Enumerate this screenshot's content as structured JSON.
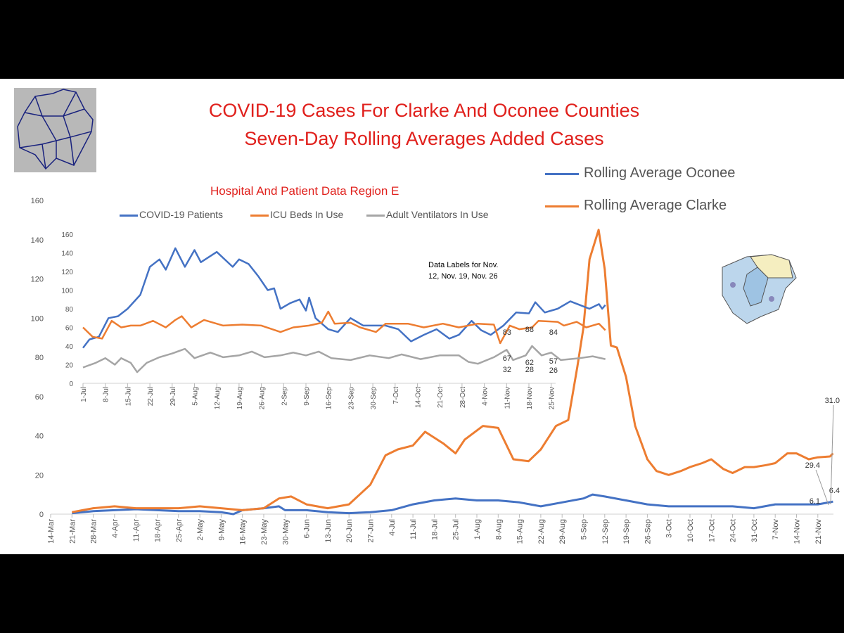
{
  "title_line1": "COVID-19 Cases For Clarke And Oconee Counties",
  "title_line2": "Seven-Day Rolling Averages Added Cases",
  "colors": {
    "oconee": "#4472c4",
    "clarke": "#ed7d31",
    "vent": "#a5a5a5",
    "title": "#e0201c"
  },
  "chart_data": [
    {
      "type": "line",
      "title": "Seven-Day Rolling Averages Added Cases",
      "ylim": [
        0,
        160
      ],
      "yticks": [
        "0",
        "20",
        "40",
        "60",
        "80",
        "100",
        "120",
        "140",
        "160"
      ],
      "xticks": [
        "14-Mar",
        "21-Mar",
        "28-Mar",
        "4-Apr",
        "11-Apr",
        "18-Apr",
        "25-Apr",
        "2-May",
        "9-May",
        "16-May",
        "23-May",
        "30-May",
        "6-Jun",
        "13-Jun",
        "20-Jun",
        "27-Jun",
        "4-Jul",
        "11-Jul",
        "18-Jul",
        "25-Jul",
        "1-Aug",
        "8-Aug",
        "15-Aug",
        "22-Aug",
        "29-Aug",
        "5-Sep",
        "12-Sep",
        "19-Sep",
        "26-Sep",
        "3-Oct",
        "10-Oct",
        "17-Oct",
        "24-Oct",
        "31-Oct",
        "7-Nov",
        "14-Nov",
        "21-Nov"
      ],
      "x_unit": "days since 14-Mar",
      "series": [
        {
          "name": "Rolling Average Oconee",
          "points": [
            [
              7,
              0.5
            ],
            [
              14,
              1.5
            ],
            [
              21,
              2
            ],
            [
              28,
              2.5
            ],
            [
              35,
              2
            ],
            [
              42,
              1.5
            ],
            [
              49,
              1.5
            ],
            [
              56,
              1
            ],
            [
              60,
              0
            ],
            [
              63,
              2
            ],
            [
              70,
              3
            ],
            [
              75,
              4
            ],
            [
              77,
              2
            ],
            [
              84,
              2
            ],
            [
              91,
              1
            ],
            [
              98,
              0.5
            ],
            [
              105,
              1
            ],
            [
              112,
              2
            ],
            [
              119,
              5
            ],
            [
              126,
              7
            ],
            [
              133,
              8
            ],
            [
              140,
              7
            ],
            [
              147,
              7
            ],
            [
              154,
              6
            ],
            [
              161,
              4
            ],
            [
              168,
              6
            ],
            [
              175,
              8
            ],
            [
              178,
              10
            ],
            [
              182,
              9
            ],
            [
              189,
              7
            ],
            [
              196,
              5
            ],
            [
              203,
              4
            ],
            [
              210,
              4
            ],
            [
              217,
              4
            ],
            [
              224,
              4
            ],
            [
              231,
              3
            ],
            [
              238,
              5
            ],
            [
              245,
              5
            ],
            [
              252,
              5
            ],
            [
              256,
              6.1
            ],
            [
              257,
              6.4
            ]
          ],
          "end_labels": [
            "6.1",
            "6.4"
          ]
        },
        {
          "name": "Rolling Average Clarke",
          "points": [
            [
              7,
              1
            ],
            [
              14,
              3
            ],
            [
              21,
              4
            ],
            [
              28,
              3
            ],
            [
              35,
              3
            ],
            [
              42,
              3
            ],
            [
              49,
              4
            ],
            [
              56,
              3
            ],
            [
              63,
              2
            ],
            [
              70,
              3
            ],
            [
              75,
              8
            ],
            [
              79,
              9
            ],
            [
              84,
              5
            ],
            [
              91,
              3
            ],
            [
              98,
              5
            ],
            [
              105,
              15
            ],
            [
              110,
              30
            ],
            [
              114,
              33
            ],
            [
              119,
              35
            ],
            [
              123,
              42
            ],
            [
              129,
              36
            ],
            [
              133,
              31
            ],
            [
              136,
              38
            ],
            [
              142,
              45
            ],
            [
              147,
              44
            ],
            [
              152,
              28
            ],
            [
              157,
              27
            ],
            [
              161,
              33
            ],
            [
              166,
              45
            ],
            [
              170,
              48
            ],
            [
              173,
              75
            ],
            [
              175,
              95
            ],
            [
              177,
              130
            ],
            [
              180,
              145
            ],
            [
              182,
              125
            ],
            [
              184,
              86
            ],
            [
              186,
              85
            ],
            [
              189,
              70
            ],
            [
              192,
              45
            ],
            [
              196,
              28
            ],
            [
              199,
              22
            ],
            [
              203,
              20
            ],
            [
              207,
              22
            ],
            [
              210,
              24
            ],
            [
              214,
              26
            ],
            [
              217,
              28
            ],
            [
              221,
              23
            ],
            [
              224,
              21
            ],
            [
              228,
              24
            ],
            [
              231,
              24
            ],
            [
              235,
              25
            ],
            [
              238,
              26
            ],
            [
              242,
              31
            ],
            [
              245,
              31
            ],
            [
              249,
              28
            ],
            [
              252,
              29
            ],
            [
              256,
              29.4
            ],
            [
              257,
              31.0
            ]
          ],
          "end_labels": [
            "29.4",
            "31.0"
          ]
        }
      ],
      "legend": "top-right"
    },
    {
      "type": "line",
      "title": "Hospital And Patient Data Region E",
      "ylim": [
        0,
        160
      ],
      "yticks": [
        "0",
        "20",
        "40",
        "60",
        "80",
        "100",
        "120",
        "140",
        "160"
      ],
      "xticks": [
        "1-Jul",
        "8-Jul",
        "15-Jul",
        "22-Jul",
        "29-Jul",
        "5-Aug",
        "12-Aug",
        "19-Aug",
        "26-Aug",
        "2-Sep",
        "9-Sep",
        "16-Sep",
        "23-Sep",
        "30-Sep",
        "7-Oct",
        "14-Oct",
        "21-Oct",
        "28-Oct",
        "4-Nov",
        "11-Nov",
        "18-Nov",
        "25-Nov"
      ],
      "x_unit": "days since 1-Jul",
      "annotation": "Data Labels for Nov. 12, Nov. 19, Nov. 26",
      "series": [
        {
          "name": "COVID-19 Patients",
          "points": [
            [
              0,
              38
            ],
            [
              2,
              47
            ],
            [
              5,
              50
            ],
            [
              8,
              70
            ],
            [
              11,
              72
            ],
            [
              14,
              80
            ],
            [
              18,
              95
            ],
            [
              21,
              125
            ],
            [
              24,
              133
            ],
            [
              26,
              122
            ],
            [
              29,
              145
            ],
            [
              32,
              125
            ],
            [
              35,
              143
            ],
            [
              37,
              130
            ],
            [
              42,
              141
            ],
            [
              47,
              125
            ],
            [
              49,
              133
            ],
            [
              52,
              128
            ],
            [
              55,
              115
            ],
            [
              58,
              100
            ],
            [
              60,
              102
            ],
            [
              62,
              80
            ],
            [
              65,
              86
            ],
            [
              68,
              90
            ],
            [
              70,
              78
            ],
            [
              71,
              92
            ],
            [
              73,
              70
            ],
            [
              77,
              58
            ],
            [
              80,
              55
            ],
            [
              84,
              70
            ],
            [
              88,
              62
            ],
            [
              95,
              62
            ],
            [
              99,
              58
            ],
            [
              103,
              45
            ],
            [
              107,
              52
            ],
            [
              111,
              58
            ],
            [
              115,
              48
            ],
            [
              118,
              52
            ],
            [
              122,
              67
            ],
            [
              125,
              57
            ],
            [
              128,
              52
            ],
            [
              132,
              62
            ],
            [
              136,
              76
            ],
            [
              140,
              75
            ],
            [
              142,
              87
            ],
            [
              145,
              76
            ],
            [
              149,
              80
            ],
            [
              153,
              88
            ],
            [
              156,
              84
            ],
            [
              159,
              80
            ],
            [
              162,
              85
            ],
            [
              163,
              80
            ],
            [
              164,
              84
            ]
          ],
          "labels": [
            "83",
            "88",
            "84"
          ]
        },
        {
          "name": "ICU Beds In Use",
          "points": [
            [
              0,
              60
            ],
            [
              3,
              50
            ],
            [
              6,
              48
            ],
            [
              9,
              67
            ],
            [
              12,
              60
            ],
            [
              15,
              62
            ],
            [
              18,
              62
            ],
            [
              22,
              67
            ],
            [
              26,
              60
            ],
            [
              29,
              68
            ],
            [
              31,
              72
            ],
            [
              34,
              60
            ],
            [
              38,
              68
            ],
            [
              44,
              62
            ],
            [
              50,
              63
            ],
            [
              56,
              62
            ],
            [
              62,
              55
            ],
            [
              66,
              60
            ],
            [
              71,
              62
            ],
            [
              75,
              65
            ],
            [
              77,
              77
            ],
            [
              79,
              64
            ],
            [
              84,
              65
            ],
            [
              87,
              60
            ],
            [
              92,
              55
            ],
            [
              95,
              64
            ],
            [
              102,
              64
            ],
            [
              107,
              60
            ],
            [
              113,
              64
            ],
            [
              118,
              60
            ],
            [
              124,
              64
            ],
            [
              129,
              63
            ],
            [
              131,
              43
            ],
            [
              134,
              62
            ],
            [
              137,
              58
            ],
            [
              141,
              60
            ],
            [
              143,
              67
            ],
            [
              149,
              66
            ],
            [
              151,
              62
            ],
            [
              155,
              66
            ],
            [
              158,
              60
            ],
            [
              162,
              64
            ],
            [
              164,
              57
            ]
          ],
          "labels": [
            "67",
            "62",
            "57"
          ]
        },
        {
          "name": "Adult Ventilators In Use",
          "points": [
            [
              0,
              17
            ],
            [
              4,
              22
            ],
            [
              7,
              27
            ],
            [
              10,
              20
            ],
            [
              12,
              27
            ],
            [
              15,
              22
            ],
            [
              17,
              12
            ],
            [
              20,
              22
            ],
            [
              24,
              28
            ],
            [
              28,
              32
            ],
            [
              32,
              37
            ],
            [
              35,
              27
            ],
            [
              40,
              33
            ],
            [
              44,
              28
            ],
            [
              49,
              30
            ],
            [
              53,
              34
            ],
            [
              57,
              28
            ],
            [
              62,
              30
            ],
            [
              66,
              33
            ],
            [
              70,
              30
            ],
            [
              74,
              34
            ],
            [
              78,
              27
            ],
            [
              84,
              25
            ],
            [
              90,
              30
            ],
            [
              96,
              27
            ],
            [
              100,
              31
            ],
            [
              106,
              26
            ],
            [
              112,
              30
            ],
            [
              118,
              30
            ],
            [
              121,
              23
            ],
            [
              124,
              21
            ],
            [
              129,
              28
            ],
            [
              133,
              36
            ],
            [
              135,
              25
            ],
            [
              139,
              30
            ],
            [
              141,
              40
            ],
            [
              144,
              30
            ],
            [
              147,
              33
            ],
            [
              150,
              25
            ],
            [
              156,
              27
            ],
            [
              160,
              29
            ],
            [
              164,
              26
            ]
          ],
          "labels": [
            "32",
            "28",
            "26"
          ]
        }
      ],
      "legend": "top"
    }
  ]
}
